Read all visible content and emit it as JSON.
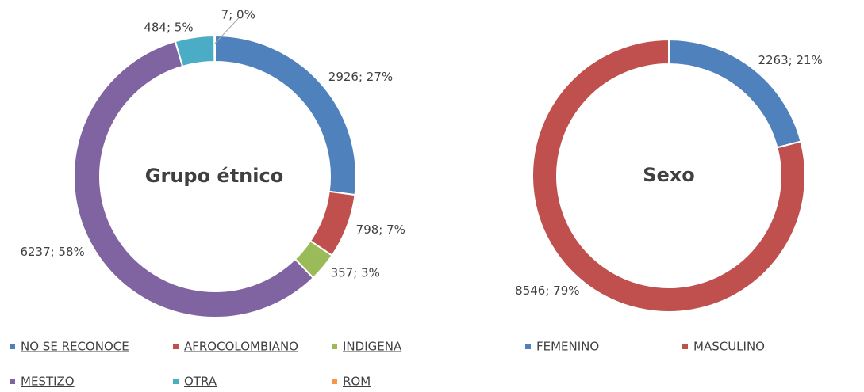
{
  "chart_data": [
    {
      "type": "donut",
      "title": "Grupo étnico",
      "categories": [
        "NO SE RECONOCE",
        "AFROCOLOMBIANO",
        "INDIGENA",
        "MESTIZO",
        "OTRA",
        "ROM"
      ],
      "values": [
        2926,
        798,
        357,
        6237,
        484,
        7
      ],
      "value_labels": [
        "2926; 27%",
        "798; 7%",
        "357; 3%",
        "6237; 58%",
        "484; 5%",
        "7; 0%"
      ],
      "colors": [
        "#4f81bd",
        "#c0504d",
        "#9bbb59",
        "#8064a2",
        "#4bacc6",
        "#f79646"
      ]
    },
    {
      "type": "donut",
      "title": "Sexo",
      "categories": [
        "FEMENINO",
        "MASCULINO"
      ],
      "values": [
        2263,
        8546
      ],
      "value_labels": [
        "2263; 21%",
        "8546; 79%"
      ],
      "colors": [
        "#4f81bd",
        "#c0504d"
      ]
    }
  ]
}
